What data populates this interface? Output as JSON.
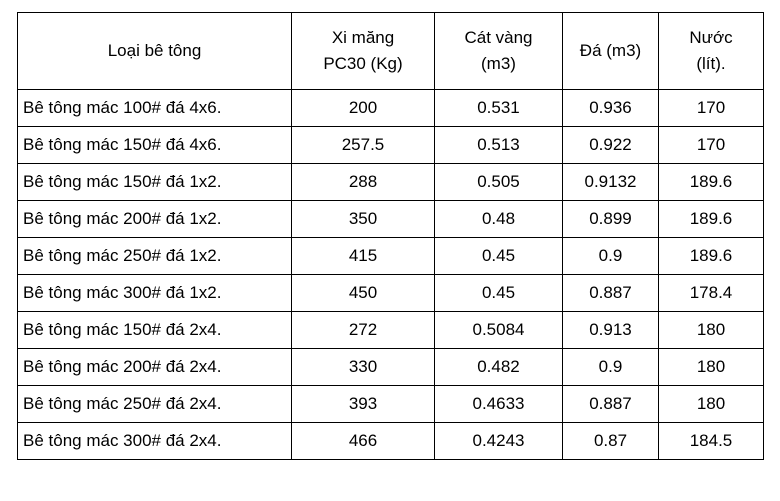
{
  "table": {
    "headers": {
      "type": [
        "Loại bê tông"
      ],
      "cement": [
        "Xi măng",
        "PC30 (Kg)"
      ],
      "sand": [
        "Cát vàng",
        "(m3)"
      ],
      "stone": [
        "Đá (m3)"
      ],
      "water": [
        "Nước",
        "(lít)."
      ]
    },
    "rows": [
      {
        "type": "Bê tông mác 100# đá 4x6.",
        "cement": "200",
        "sand": "0.531",
        "stone": "0.936",
        "water": "170"
      },
      {
        "type": "Bê tông mác 150# đá 4x6.",
        "cement": "257.5",
        "sand": "0.513",
        "stone": "0.922",
        "water": "170"
      },
      {
        "type": "Bê tông mác 150# đá 1x2.",
        "cement": "288",
        "sand": "0.505",
        "stone": "0.9132",
        "water": "189.6"
      },
      {
        "type": "Bê tông mác 200# đá 1x2.",
        "cement": "350",
        "sand": "0.48",
        "stone": "0.899",
        "water": "189.6"
      },
      {
        "type": "Bê tông mác 250# đá 1x2.",
        "cement": "415",
        "sand": "0.45",
        "stone": "0.9",
        "water": "189.6"
      },
      {
        "type": "Bê tông mác 300# đá 1x2.",
        "cement": "450",
        "sand": "0.45",
        "stone": "0.887",
        "water": "178.4"
      },
      {
        "type": "Bê tông mác 150# đá 2x4.",
        "cement": "272",
        "sand": "0.5084",
        "stone": "0.913",
        "water": "180"
      },
      {
        "type": "Bê tông mác 200# đá 2x4.",
        "cement": "330",
        "sand": "0.482",
        "stone": "0.9",
        "water": "180"
      },
      {
        "type": "Bê tông mác 250# đá 2x4.",
        "cement": "393",
        "sand": "0.4633",
        "stone": "0.887",
        "water": "180"
      },
      {
        "type": "Bê tông mác 300# đá 2x4.",
        "cement": "466",
        "sand": "0.4243",
        "stone": "0.87",
        "water": "184.5"
      }
    ]
  }
}
